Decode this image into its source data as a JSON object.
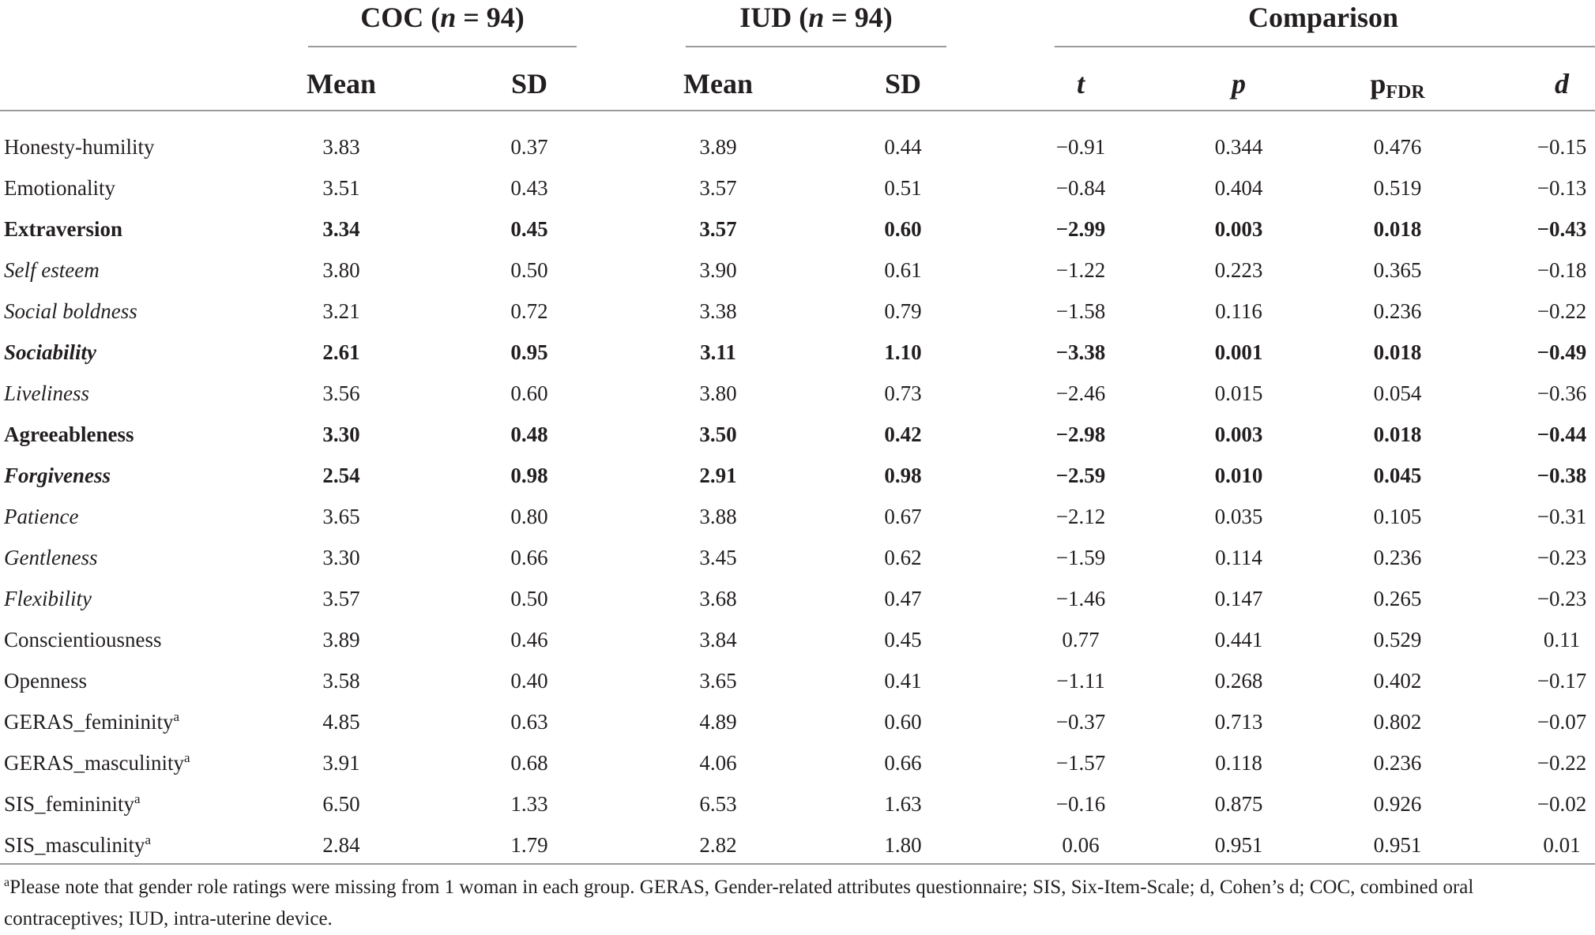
{
  "groups": {
    "coc": {
      "name": "COC",
      "n_label": "n",
      "n_eq": " = 94"
    },
    "iud": {
      "name": "IUD",
      "n_label": "n",
      "n_eq": " = 94"
    },
    "comparison": "Comparison"
  },
  "columns": {
    "coc_mean": "Mean",
    "coc_sd": "SD",
    "iud_mean": "Mean",
    "iud_sd": "SD",
    "t": "t",
    "p": "p",
    "pfdr_base": "p",
    "pfdr_sub": "FDR",
    "d": "d"
  },
  "rows": [
    {
      "label": "Honesty-humility",
      "sup": "",
      "italic": false,
      "bold": false,
      "values": [
        "3.83",
        "0.37",
        "3.89",
        "0.44",
        "−0.91",
        "0.344",
        "0.476",
        "−0.15"
      ]
    },
    {
      "label": "Emotionality",
      "sup": "",
      "italic": false,
      "bold": false,
      "values": [
        "3.51",
        "0.43",
        "3.57",
        "0.51",
        "−0.84",
        "0.404",
        "0.519",
        "−0.13"
      ]
    },
    {
      "label": "Extraversion",
      "sup": "",
      "italic": false,
      "bold": true,
      "values": [
        "3.34",
        "0.45",
        "3.57",
        "0.60",
        "−2.99",
        "0.003",
        "0.018",
        "−0.43"
      ]
    },
    {
      "label": "Self esteem",
      "sup": "",
      "italic": true,
      "bold": false,
      "values": [
        "3.80",
        "0.50",
        "3.90",
        "0.61",
        "−1.22",
        "0.223",
        "0.365",
        "−0.18"
      ]
    },
    {
      "label": "Social boldness",
      "sup": "",
      "italic": true,
      "bold": false,
      "values": [
        "3.21",
        "0.72",
        "3.38",
        "0.79",
        "−1.58",
        "0.116",
        "0.236",
        "−0.22"
      ]
    },
    {
      "label": "Sociability",
      "sup": "",
      "italic": true,
      "bold": true,
      "values": [
        "2.61",
        "0.95",
        "3.11",
        "1.10",
        "−3.38",
        "0.001",
        "0.018",
        "−0.49"
      ]
    },
    {
      "label": "Liveliness",
      "sup": "",
      "italic": true,
      "bold": false,
      "values": [
        "3.56",
        "0.60",
        "3.80",
        "0.73",
        "−2.46",
        "0.015",
        "0.054",
        "−0.36"
      ]
    },
    {
      "label": "Agreeableness",
      "sup": "",
      "italic": false,
      "bold": true,
      "values": [
        "3.30",
        "0.48",
        "3.50",
        "0.42",
        "−2.98",
        "0.003",
        "0.018",
        "−0.44"
      ]
    },
    {
      "label": "Forgiveness",
      "sup": "",
      "italic": true,
      "bold": true,
      "values": [
        "2.54",
        "0.98",
        "2.91",
        "0.98",
        "−2.59",
        "0.010",
        "0.045",
        "−0.38"
      ]
    },
    {
      "label": "Patience",
      "sup": "",
      "italic": true,
      "bold": false,
      "values": [
        "3.65",
        "0.80",
        "3.88",
        "0.67",
        "−2.12",
        "0.035",
        "0.105",
        "−0.31"
      ]
    },
    {
      "label": "Gentleness",
      "sup": "",
      "italic": true,
      "bold": false,
      "values": [
        "3.30",
        "0.66",
        "3.45",
        "0.62",
        "−1.59",
        "0.114",
        "0.236",
        "−0.23"
      ]
    },
    {
      "label": "Flexibility",
      "sup": "",
      "italic": true,
      "bold": false,
      "values": [
        "3.57",
        "0.50",
        "3.68",
        "0.47",
        "−1.46",
        "0.147",
        "0.265",
        "−0.23"
      ]
    },
    {
      "label": "Conscientiousness",
      "sup": "",
      "italic": false,
      "bold": false,
      "values": [
        "3.89",
        "0.46",
        "3.84",
        "0.45",
        "0.77",
        "0.441",
        "0.529",
        "0.11"
      ]
    },
    {
      "label": "Openness",
      "sup": "",
      "italic": false,
      "bold": false,
      "values": [
        "3.58",
        "0.40",
        "3.65",
        "0.41",
        "−1.11",
        "0.268",
        "0.402",
        "−0.17"
      ]
    },
    {
      "label": "GERAS_femininity",
      "sup": "a",
      "italic": false,
      "bold": false,
      "values": [
        "4.85",
        "0.63",
        "4.89",
        "0.60",
        "−0.37",
        "0.713",
        "0.802",
        "−0.07"
      ]
    },
    {
      "label": "GERAS_masculinity",
      "sup": "a",
      "italic": false,
      "bold": false,
      "values": [
        "3.91",
        "0.68",
        "4.06",
        "0.66",
        "−1.57",
        "0.118",
        "0.236",
        "−0.22"
      ]
    },
    {
      "label": "SIS_femininity",
      "sup": "a",
      "italic": false,
      "bold": false,
      "values": [
        "6.50",
        "1.33",
        "6.53",
        "1.63",
        "−0.16",
        "0.875",
        "0.926",
        "−0.02"
      ]
    },
    {
      "label": "SIS_masculinity",
      "sup": "a",
      "italic": false,
      "bold": false,
      "values": [
        "2.84",
        "1.79",
        "2.82",
        "1.80",
        "0.06",
        "0.951",
        "0.951",
        "0.01"
      ]
    }
  ],
  "footnote": {
    "marker": "a",
    "text": "Please note that gender role ratings were missing from 1 woman in each group. GERAS, Gender-related attributes questionnaire; SIS, Six-Item-Scale; d, Cohen’s d; COC, combined oral contraceptives; IUD, intra-uterine device."
  }
}
